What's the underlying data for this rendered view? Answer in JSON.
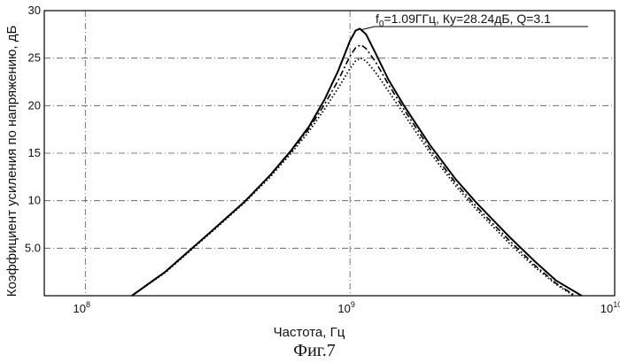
{
  "chart_data": {
    "type": "line",
    "title": "",
    "xlabel": "Частота, Гц",
    "ylabel": "Коэффициент усиления по напряжению, дБ",
    "caption": "Фиг.7",
    "x_scale": "log",
    "xlim": [
      70000000,
      10000000000
    ],
    "ylim": [
      0,
      30
    ],
    "grid": true,
    "x_ticks": [
      {
        "value": 100000000,
        "base": "10",
        "exp": "8"
      },
      {
        "value": 1000000000,
        "base": "10",
        "exp": "9"
      },
      {
        "value": 10000000000,
        "base": "10",
        "exp": "10"
      }
    ],
    "y_ticks": [
      {
        "value": 5,
        "label": "5.0"
      },
      {
        "value": 10,
        "label": "10"
      },
      {
        "value": 15,
        "label": "15"
      },
      {
        "value": 20,
        "label": "20"
      },
      {
        "value": 25,
        "label": "25"
      },
      {
        "value": 30,
        "label": "30"
      }
    ],
    "annotation": {
      "base": "f",
      "sub": "0",
      "rest": "=1.09ГГц, Ку=28.24дБ, Q=3.1",
      "x": 1090000000,
      "y": 28.0
    },
    "series": [
      {
        "style": "solid",
        "x": [
          150000000,
          200000000,
          300000000,
          400000000,
          500000000,
          600000000,
          700000000,
          800000000,
          900000000,
          1000000000,
          1050000000,
          1090000000,
          1150000000,
          1250000000,
          1400000000,
          1600000000,
          2000000000,
          2500000000,
          3000000000,
          4000000000,
          5000000000,
          6000000000,
          7500000000
        ],
        "y": [
          0,
          2.5,
          6.8,
          9.9,
          12.7,
          15.3,
          17.8,
          20.6,
          23.6,
          26.8,
          27.9,
          28.1,
          27.5,
          25.5,
          22.7,
          20.0,
          15.9,
          12.3,
          9.8,
          6.2,
          3.6,
          1.6,
          0
        ]
      },
      {
        "style": "dashdot",
        "x": [
          150000000,
          200000000,
          300000000,
          400000000,
          500000000,
          600000000,
          700000000,
          800000000,
          900000000,
          1000000000,
          1050000000,
          1100000000,
          1150000000,
          1250000000,
          1400000000,
          1600000000,
          2000000000,
          2500000000,
          3000000000,
          4000000000,
          5000000000,
          6000000000,
          7100000000
        ],
        "y": [
          0,
          2.5,
          6.8,
          9.9,
          12.7,
          15.2,
          17.6,
          20.1,
          22.6,
          25.2,
          26.1,
          26.4,
          26.0,
          24.6,
          22.2,
          19.6,
          15.5,
          11.9,
          9.4,
          5.8,
          3.2,
          1.3,
          0
        ]
      },
      {
        "style": "dotted",
        "x": [
          150000000,
          200000000,
          300000000,
          400000000,
          500000000,
          600000000,
          700000000,
          800000000,
          900000000,
          1000000000,
          1050000000,
          1100000000,
          1150000000,
          1250000000,
          1400000000,
          1600000000,
          2000000000,
          2500000000,
          3000000000,
          4000000000,
          5000000000,
          6000000000,
          7000000000
        ],
        "y": [
          0,
          2.4,
          6.7,
          9.8,
          12.5,
          15.0,
          17.3,
          19.6,
          21.8,
          23.9,
          24.7,
          25.0,
          24.7,
          23.5,
          21.5,
          19.1,
          15.1,
          11.6,
          9.1,
          5.5,
          3.0,
          1.2,
          0
        ]
      }
    ]
  }
}
